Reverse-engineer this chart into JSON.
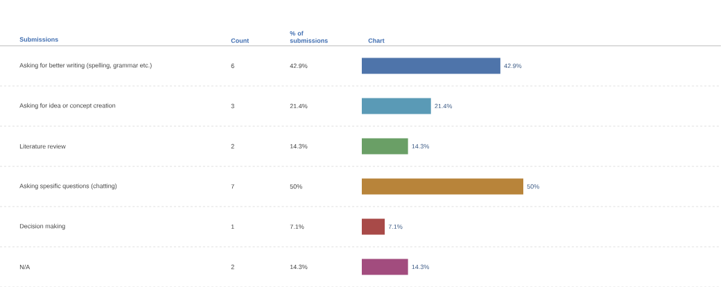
{
  "chart_data": {
    "type": "bar",
    "orientation": "horizontal",
    "ylabel": "Submissions",
    "categories": [
      "Asking for better writing (spelling, grammar etc.)",
      "Asking for idea or concept creation",
      "Literature review",
      "Asking spesific questions (chatting)",
      "Decision making",
      "N/A"
    ],
    "values": [
      42.9,
      21.4,
      14.3,
      50,
      7.1,
      14.3
    ],
    "value_labels": [
      "42.9%",
      "21.4%",
      "14.3%",
      "50%",
      "7.1%",
      "14.3%"
    ],
    "colors": [
      "#4e74aa",
      "#5a9ab6",
      "#6a9f66",
      "#b8843a",
      "#a84a48",
      "#a24c7e"
    ],
    "annotations": [
      "Count",
      "% of submissions",
      "Chart",
      "6",
      "3",
      "2",
      "7",
      "1",
      "2"
    ],
    "grid": "y"
  }
}
